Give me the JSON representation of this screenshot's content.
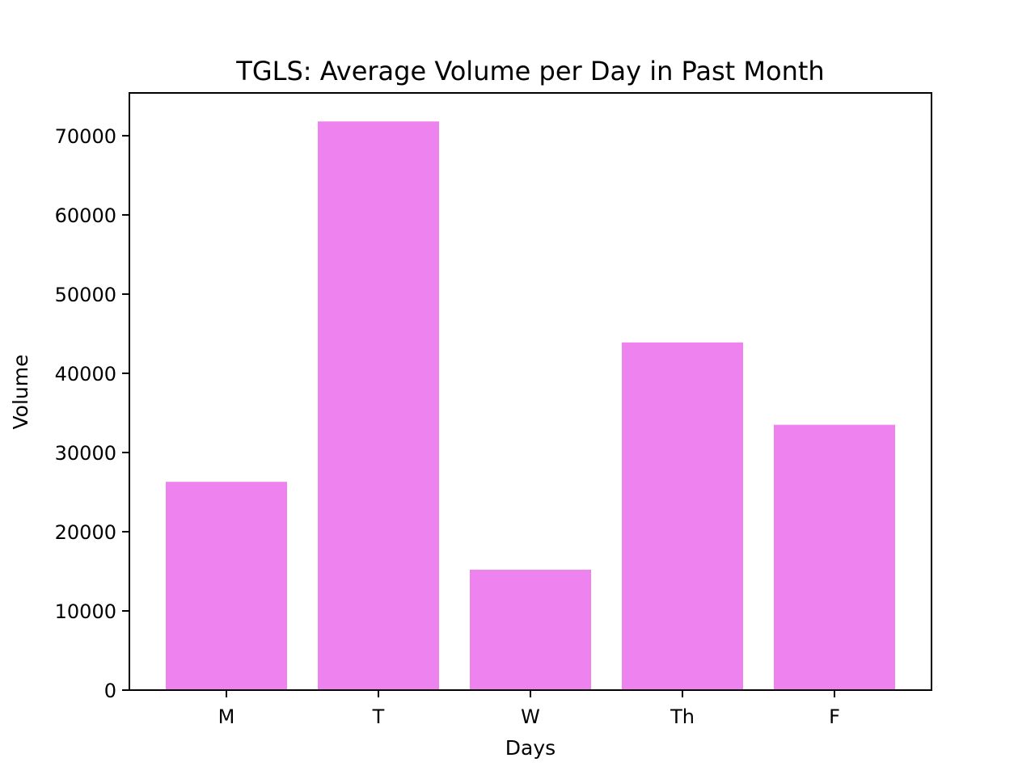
{
  "chart_data": {
    "type": "bar",
    "title": "TGLS: Average Volume per Day in Past Month",
    "xlabel": "Days",
    "ylabel": "Volume",
    "categories": [
      "M",
      "T",
      "W",
      "Th",
      "F"
    ],
    "values": [
      26300,
      71800,
      15200,
      43900,
      33500
    ],
    "ylim": [
      0,
      75400
    ],
    "yticks": [
      0,
      10000,
      20000,
      30000,
      40000,
      50000,
      60000,
      70000
    ],
    "ytick_labels": [
      "0",
      "10000",
      "20000",
      "30000",
      "40000",
      "50000",
      "60000",
      "70000"
    ],
    "bar_color": "#ee82ee",
    "grid": false,
    "legend": "none"
  }
}
